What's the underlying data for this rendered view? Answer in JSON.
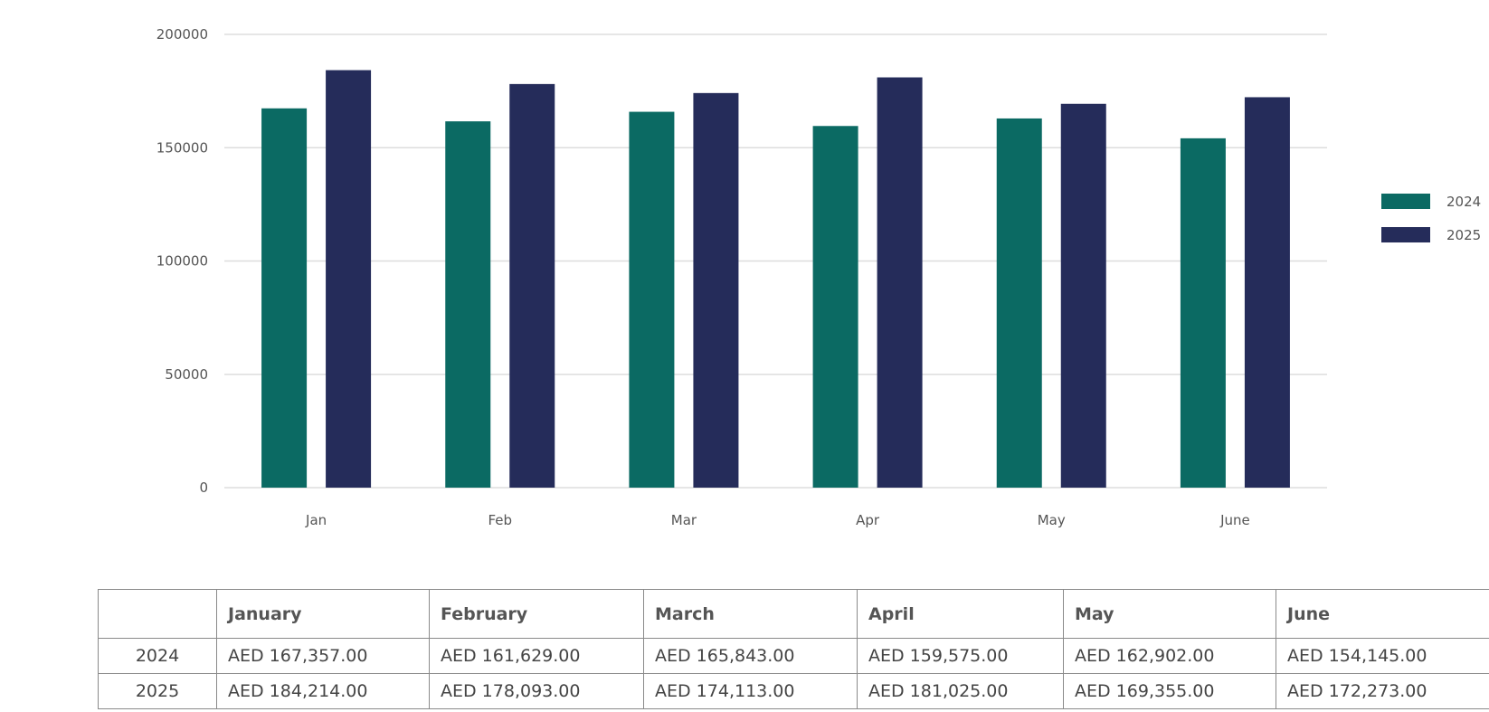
{
  "chart_data": {
    "type": "bar",
    "categories": [
      "Jan",
      "Feb",
      "Mar",
      "Apr",
      "May",
      "June"
    ],
    "series": [
      {
        "name": "2024",
        "color": "#0b6a63",
        "values": [
          167357,
          161629,
          165843,
          159575,
          162902,
          154145
        ]
      },
      {
        "name": "2025",
        "color": "#252c5a",
        "values": [
          184214,
          178093,
          174113,
          181025,
          169355,
          172273
        ]
      }
    ],
    "yticks": [
      "0",
      "50000",
      "100000",
      "150000",
      "200000"
    ],
    "ylim": [
      0,
      200000
    ],
    "grid": true,
    "legend_position": "right"
  },
  "table": {
    "headers": [
      "",
      "January",
      "February",
      "March",
      "April",
      "May",
      "June"
    ],
    "rows": [
      {
        "label": "2024",
        "cells": [
          "AED 167,357.00",
          "AED 161,629.00",
          "AED 165,843.00",
          "AED 159,575.00",
          "AED 162,902.00",
          "AED 154,145.00"
        ]
      },
      {
        "label": "2025",
        "cells": [
          "AED 184,214.00",
          "AED 178,093.00",
          "AED 174,113.00",
          "AED 181,025.00",
          "AED 169,355.00",
          "AED 172,273.00"
        ]
      }
    ]
  }
}
